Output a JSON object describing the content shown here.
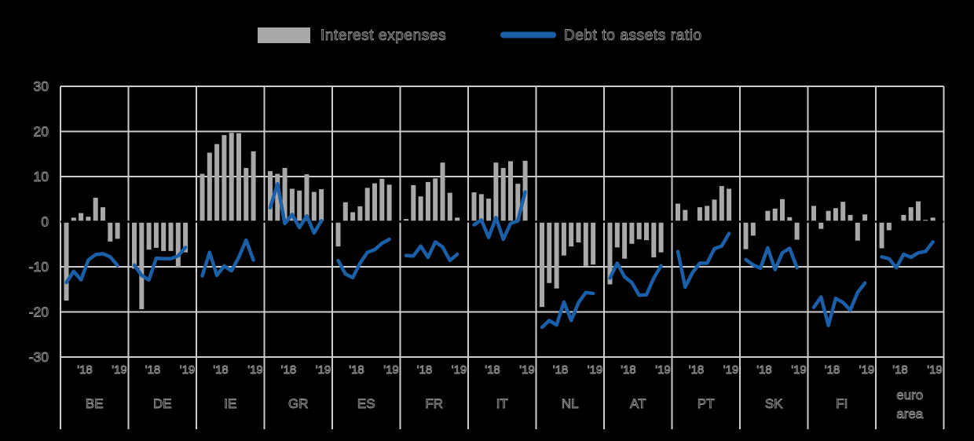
{
  "legend": {
    "bar_label": "Interest expenses",
    "line_label": "Debt to assets ratio"
  },
  "colors": {
    "background": "#000000",
    "bar": "#a9a9a9",
    "line": "#1a5fa8",
    "grid": "#cccccc",
    "zero_line": "#000000",
    "text_outline": "#979797"
  },
  "chart_data": {
    "type": "bar",
    "subtype": "panel bar chart with overlaid line, quarterly data 2018Q1-2019Q4",
    "bar_series": "Interest expenses",
    "line_series": "Debt to assets ratio",
    "grid": true,
    "legend_position": "top",
    "x_ticks": [
      "'18",
      "'19"
    ],
    "y_axis": {
      "ticks": [
        30,
        20,
        10,
        0,
        -10,
        -20,
        -30
      ],
      "labels": [
        "30",
        "20",
        "10",
        "0",
        "-10",
        "-20",
        "-30"
      ],
      "ylim": [
        -30,
        30
      ]
    },
    "panels": [
      {
        "label": "BE",
        "bars": [
          -17.5,
          0.9,
          1.9,
          1.1,
          5.3,
          3.2,
          -4.4,
          -3.8
        ],
        "line": [
          -13.5,
          -11.0,
          -12.9,
          -8.5,
          -7.3,
          -7.1,
          -7.8,
          -9.7
        ]
      },
      {
        "label": "DE",
        "bars": [
          -10.4,
          -19.4,
          -6.2,
          -5.8,
          -6.5,
          -6.5,
          -10.2,
          -6.8
        ],
        "line": [
          -9.6,
          -11.9,
          -12.9,
          -8.1,
          -8.2,
          -8.2,
          -7.6,
          -5.7
        ]
      },
      {
        "label": "IE",
        "bars": [
          10.6,
          15.3,
          17.2,
          19.2,
          19.7,
          19.6,
          11.9,
          15.6
        ],
        "line": [
          -12.0,
          -6.8,
          -11.9,
          -9.8,
          -10.9,
          -7.9,
          -4.1,
          -8.5
        ]
      },
      {
        "label": "GR",
        "bars": [
          11.2,
          10.6,
          11.9,
          7.3,
          6.9,
          10.5,
          6.6,
          7.2
        ],
        "line": [
          3.1,
          8.4,
          -0.4,
          1.6,
          -1.3,
          1.3,
          -2.5,
          0.2
        ]
      },
      {
        "label": "ES",
        "bars": [
          -5.5,
          4.3,
          2.1,
          3.4,
          7.5,
          8.5,
          9.5,
          8.2
        ],
        "line": [
          -8.6,
          -11.6,
          -12.4,
          -9.2,
          -6.8,
          -6.2,
          -4.8,
          -3.9
        ]
      },
      {
        "label": "FR",
        "bars": [
          0.6,
          8.1,
          5.6,
          8.8,
          9.6,
          13.1,
          6.4,
          0.9
        ],
        "line": [
          -7.5,
          -7.6,
          -5.4,
          -7.9,
          -4.5,
          -5.6,
          -8.6,
          -7.2
        ]
      },
      {
        "label": "IT",
        "bars": [
          6.5,
          6.1,
          5.1,
          13.1,
          11.9,
          13.4,
          8.4,
          13.5
        ],
        "line": [
          -0.7,
          0.4,
          -3.5,
          0.9,
          -3.9,
          -0.4,
          0.2,
          6.6
        ]
      },
      {
        "label": "NL",
        "bars": [
          -18.9,
          -13.6,
          -14.8,
          -7.5,
          -5.5,
          -4.6,
          -9.8,
          -9.5
        ],
        "line": [
          -23.4,
          -21.9,
          -22.9,
          -17.8,
          -21.9,
          -17.9,
          -15.7,
          -15.9
        ]
      },
      {
        "label": "AT",
        "bars": [
          -13.9,
          -5.7,
          -8.2,
          -4.9,
          -3.9,
          -4.1,
          -7.9,
          -6.8
        ],
        "line": [
          -12.5,
          -9.2,
          -12.2,
          -13.5,
          -16.3,
          -16.2,
          -12.5,
          -9.8
        ]
      },
      {
        "label": "PT",
        "bars": [
          4.0,
          2.6,
          0.2,
          3.2,
          3.5,
          4.9,
          7.9,
          7.3
        ],
        "line": [
          -6.6,
          -14.5,
          -11.3,
          -9.2,
          -9.2,
          -6.0,
          -5.4,
          -2.6
        ]
      },
      {
        "label": "SK",
        "bars": [
          -6.1,
          -3.1,
          0.0,
          2.4,
          2.9,
          5.0,
          1.0,
          -4.0
        ],
        "line": [
          -8.4,
          -9.6,
          -10.3,
          -5.8,
          -10.6,
          -6.9,
          -5.9,
          -10.2
        ]
      },
      {
        "label": "FI",
        "bars": [
          3.5,
          -1.6,
          2.4,
          3.0,
          4.4,
          1.5,
          -4.2,
          1.6
        ],
        "line": [
          -19.0,
          -16.7,
          -23.0,
          -17.0,
          -17.9,
          -19.6,
          -15.7,
          -13.6
        ]
      },
      {
        "label": "euro area",
        "bars": [
          -5.9,
          -1.9,
          0.0,
          1.5,
          3.2,
          4.5,
          0.4,
          0.9
        ],
        "line": [
          -7.8,
          -8.2,
          -10.2,
          -7.2,
          -7.9,
          -6.9,
          -6.6,
          -4.5
        ]
      }
    ]
  }
}
